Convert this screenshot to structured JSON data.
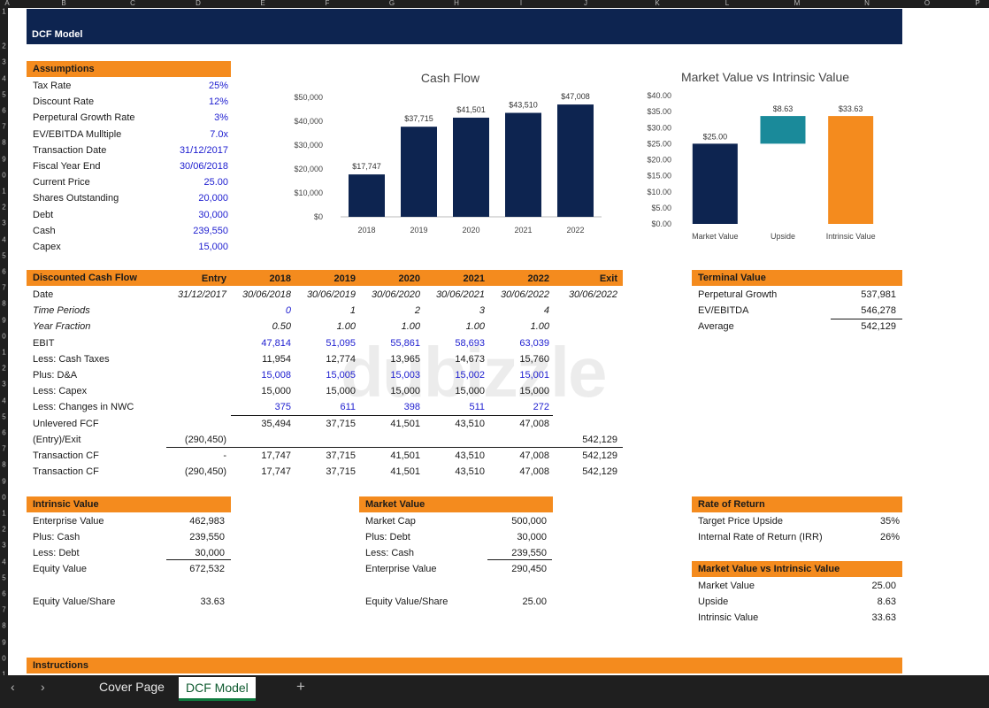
{
  "columns": [
    "A",
    "B",
    "C",
    "D",
    "E",
    "F",
    "G",
    "H",
    "I",
    "J",
    "K",
    "L",
    "M",
    "N",
    "O",
    "P"
  ],
  "rows": [
    "1",
    "2",
    "3",
    "4",
    "5",
    "6",
    "7",
    "8",
    "9",
    "0",
    "1",
    "2",
    "3",
    "4",
    "5",
    "6",
    "7",
    "8",
    "9",
    "0",
    "1",
    "2",
    "3",
    "4",
    "5",
    "6",
    "7",
    "8",
    "9",
    "0",
    "1",
    "2",
    "3",
    "4",
    "5",
    "6",
    "7",
    "8",
    "9",
    "0",
    "1"
  ],
  "title": "DCF Model",
  "assumptions": {
    "header": "Assumptions",
    "items": [
      {
        "label": "Tax Rate",
        "value": "25%"
      },
      {
        "label": "Discount Rate",
        "value": "12%"
      },
      {
        "label": "Perpetural Growth Rate",
        "value": "3%"
      },
      {
        "label": "EV/EBITDA Mulltiple",
        "value": "7.0x"
      },
      {
        "label": "Transaction Date",
        "value": "31/12/2017"
      },
      {
        "label": "Fiscal Year End",
        "value": "30/06/2018"
      },
      {
        "label": "Current Price",
        "value": "25.00"
      },
      {
        "label": "Shares Outstanding",
        "value": "20,000"
      },
      {
        "label": "Debt",
        "value": "30,000"
      },
      {
        "label": "Cash",
        "value": "239,550"
      },
      {
        "label": "Capex",
        "value": "15,000"
      }
    ]
  },
  "dcf": {
    "header": "Discounted Cash Flow",
    "columns": [
      "Entry",
      "2018",
      "2019",
      "2020",
      "2021",
      "2022",
      "Exit"
    ],
    "rows": [
      {
        "label": "Date",
        "cells": [
          "31/12/2017",
          "30/06/2018",
          "30/06/2019",
          "30/06/2020",
          "30/06/2021",
          "30/06/2022",
          "30/06/2022"
        ]
      },
      {
        "label": "Time Periods",
        "cells": [
          "",
          "0",
          "1",
          "2",
          "3",
          "4",
          ""
        ]
      },
      {
        "label": "Year Fraction",
        "cells": [
          "",
          "0.50",
          "1.00",
          "1.00",
          "1.00",
          "1.00",
          ""
        ]
      },
      {
        "label": "EBIT",
        "cells": [
          "",
          "47,814",
          "51,095",
          "55,861",
          "58,693",
          "63,039",
          ""
        ]
      },
      {
        "label": "Less: Cash Taxes",
        "cells": [
          "",
          "11,954",
          "12,774",
          "13,965",
          "14,673",
          "15,760",
          ""
        ]
      },
      {
        "label": "Plus: D&A",
        "cells": [
          "",
          "15,008",
          "15,005",
          "15,003",
          "15,002",
          "15,001",
          ""
        ]
      },
      {
        "label": "Less: Capex",
        "cells": [
          "",
          "15,000",
          "15,000",
          "15,000",
          "15,000",
          "15,000",
          ""
        ]
      },
      {
        "label": "Less: Changes in NWC",
        "cells": [
          "",
          "375",
          "611",
          "398",
          "511",
          "272",
          ""
        ]
      },
      {
        "label": "Unlevered FCF",
        "cells": [
          "",
          "35,494",
          "37,715",
          "41,501",
          "43,510",
          "47,008",
          ""
        ]
      },
      {
        "label": "(Entry)/Exit",
        "cells": [
          "(290,450)",
          "",
          "",
          "",
          "",
          "",
          "542,129"
        ]
      },
      {
        "label": "Transaction CF",
        "cells": [
          "-",
          "17,747",
          "37,715",
          "41,501",
          "43,510",
          "47,008",
          "542,129"
        ]
      },
      {
        "label": "Transaction CF",
        "cells": [
          "(290,450)",
          "17,747",
          "37,715",
          "41,501",
          "43,510",
          "47,008",
          "542,129"
        ]
      }
    ]
  },
  "terminal": {
    "header": "Terminal Value",
    "items": [
      {
        "label": "Perpetural Growth",
        "value": "537,981"
      },
      {
        "label": "EV/EBITDA",
        "value": "546,278"
      },
      {
        "label": "Average",
        "value": "542,129"
      }
    ]
  },
  "intrinsic": {
    "header": "Intrinsic Value",
    "items": [
      {
        "label": "Enterprise Value",
        "value": "462,983"
      },
      {
        "label": "Plus: Cash",
        "value": "239,550"
      },
      {
        "label": "Less: Debt",
        "value": "30,000"
      },
      {
        "label": "Equity Value",
        "value": "672,532"
      },
      {
        "label": "Equity Value/Share",
        "value": "33.63"
      }
    ]
  },
  "market": {
    "header": "Market Value",
    "items": [
      {
        "label": "Market Cap",
        "value": "500,000"
      },
      {
        "label": "Plus: Debt",
        "value": "30,000"
      },
      {
        "label": "Less: Cash",
        "value": "239,550"
      },
      {
        "label": "Enterprise Value",
        "value": "290,450"
      },
      {
        "label": "Equity Value/Share",
        "value": "25.00"
      }
    ]
  },
  "ror": {
    "header": "Rate of Return",
    "items": [
      {
        "label": "Target Price Upside",
        "value": "35%"
      },
      {
        "label": "Internal Rate of Return (IRR)",
        "value": "26%"
      }
    ]
  },
  "mvi": {
    "header": "Market Value vs Intrinsic Value",
    "items": [
      {
        "label": "Market Value",
        "value": "25.00"
      },
      {
        "label": "Upside",
        "value": "8.63"
      },
      {
        "label": "Intrinsic Value",
        "value": "33.63"
      }
    ]
  },
  "instructions": {
    "header": "Instructions"
  },
  "tabs": {
    "cover": "Cover Page",
    "dcf": "DCF Model",
    "add": "+",
    "prev": "‹",
    "next": "›"
  },
  "watermark": "dubizzle",
  "colors": {
    "navy": "#0d2450",
    "orange": "#f48b1e",
    "teal": "#1a8a9a",
    "input_blue": "#2020d0"
  },
  "chart_data": [
    {
      "type": "bar",
      "title": "Cash Flow",
      "categories": [
        "2018",
        "2019",
        "2020",
        "2021",
        "2022"
      ],
      "values": [
        17747,
        37715,
        41501,
        43510,
        47008
      ],
      "data_labels": [
        "$17,747",
        "$37,715",
        "$41,501",
        "$43,510",
        "$47,008"
      ],
      "ylim": [
        0,
        50000
      ],
      "yticks": [
        "$0",
        "$10,000",
        "$20,000",
        "$30,000",
        "$40,000",
        "$50,000"
      ],
      "color": "#0d2450",
      "grid": false
    },
    {
      "type": "bar",
      "title": "Market Value vs Intrinsic Value",
      "categories": [
        "Market Value",
        "Upside",
        "Intrinsic Value"
      ],
      "values": [
        25.0,
        8.63,
        33.63
      ],
      "bases": [
        0,
        25.0,
        0
      ],
      "data_labels": [
        "$25.00",
        "$8.63",
        "$33.63"
      ],
      "colors": [
        "#0d2450",
        "#1a8a9a",
        "#f48b1e"
      ],
      "ylim": [
        0,
        40
      ],
      "yticks": [
        "$0.00",
        "$5.00",
        "$10.00",
        "$15.00",
        "$20.00",
        "$25.00",
        "$30.00",
        "$35.00",
        "$40.00"
      ],
      "grid": false
    }
  ]
}
